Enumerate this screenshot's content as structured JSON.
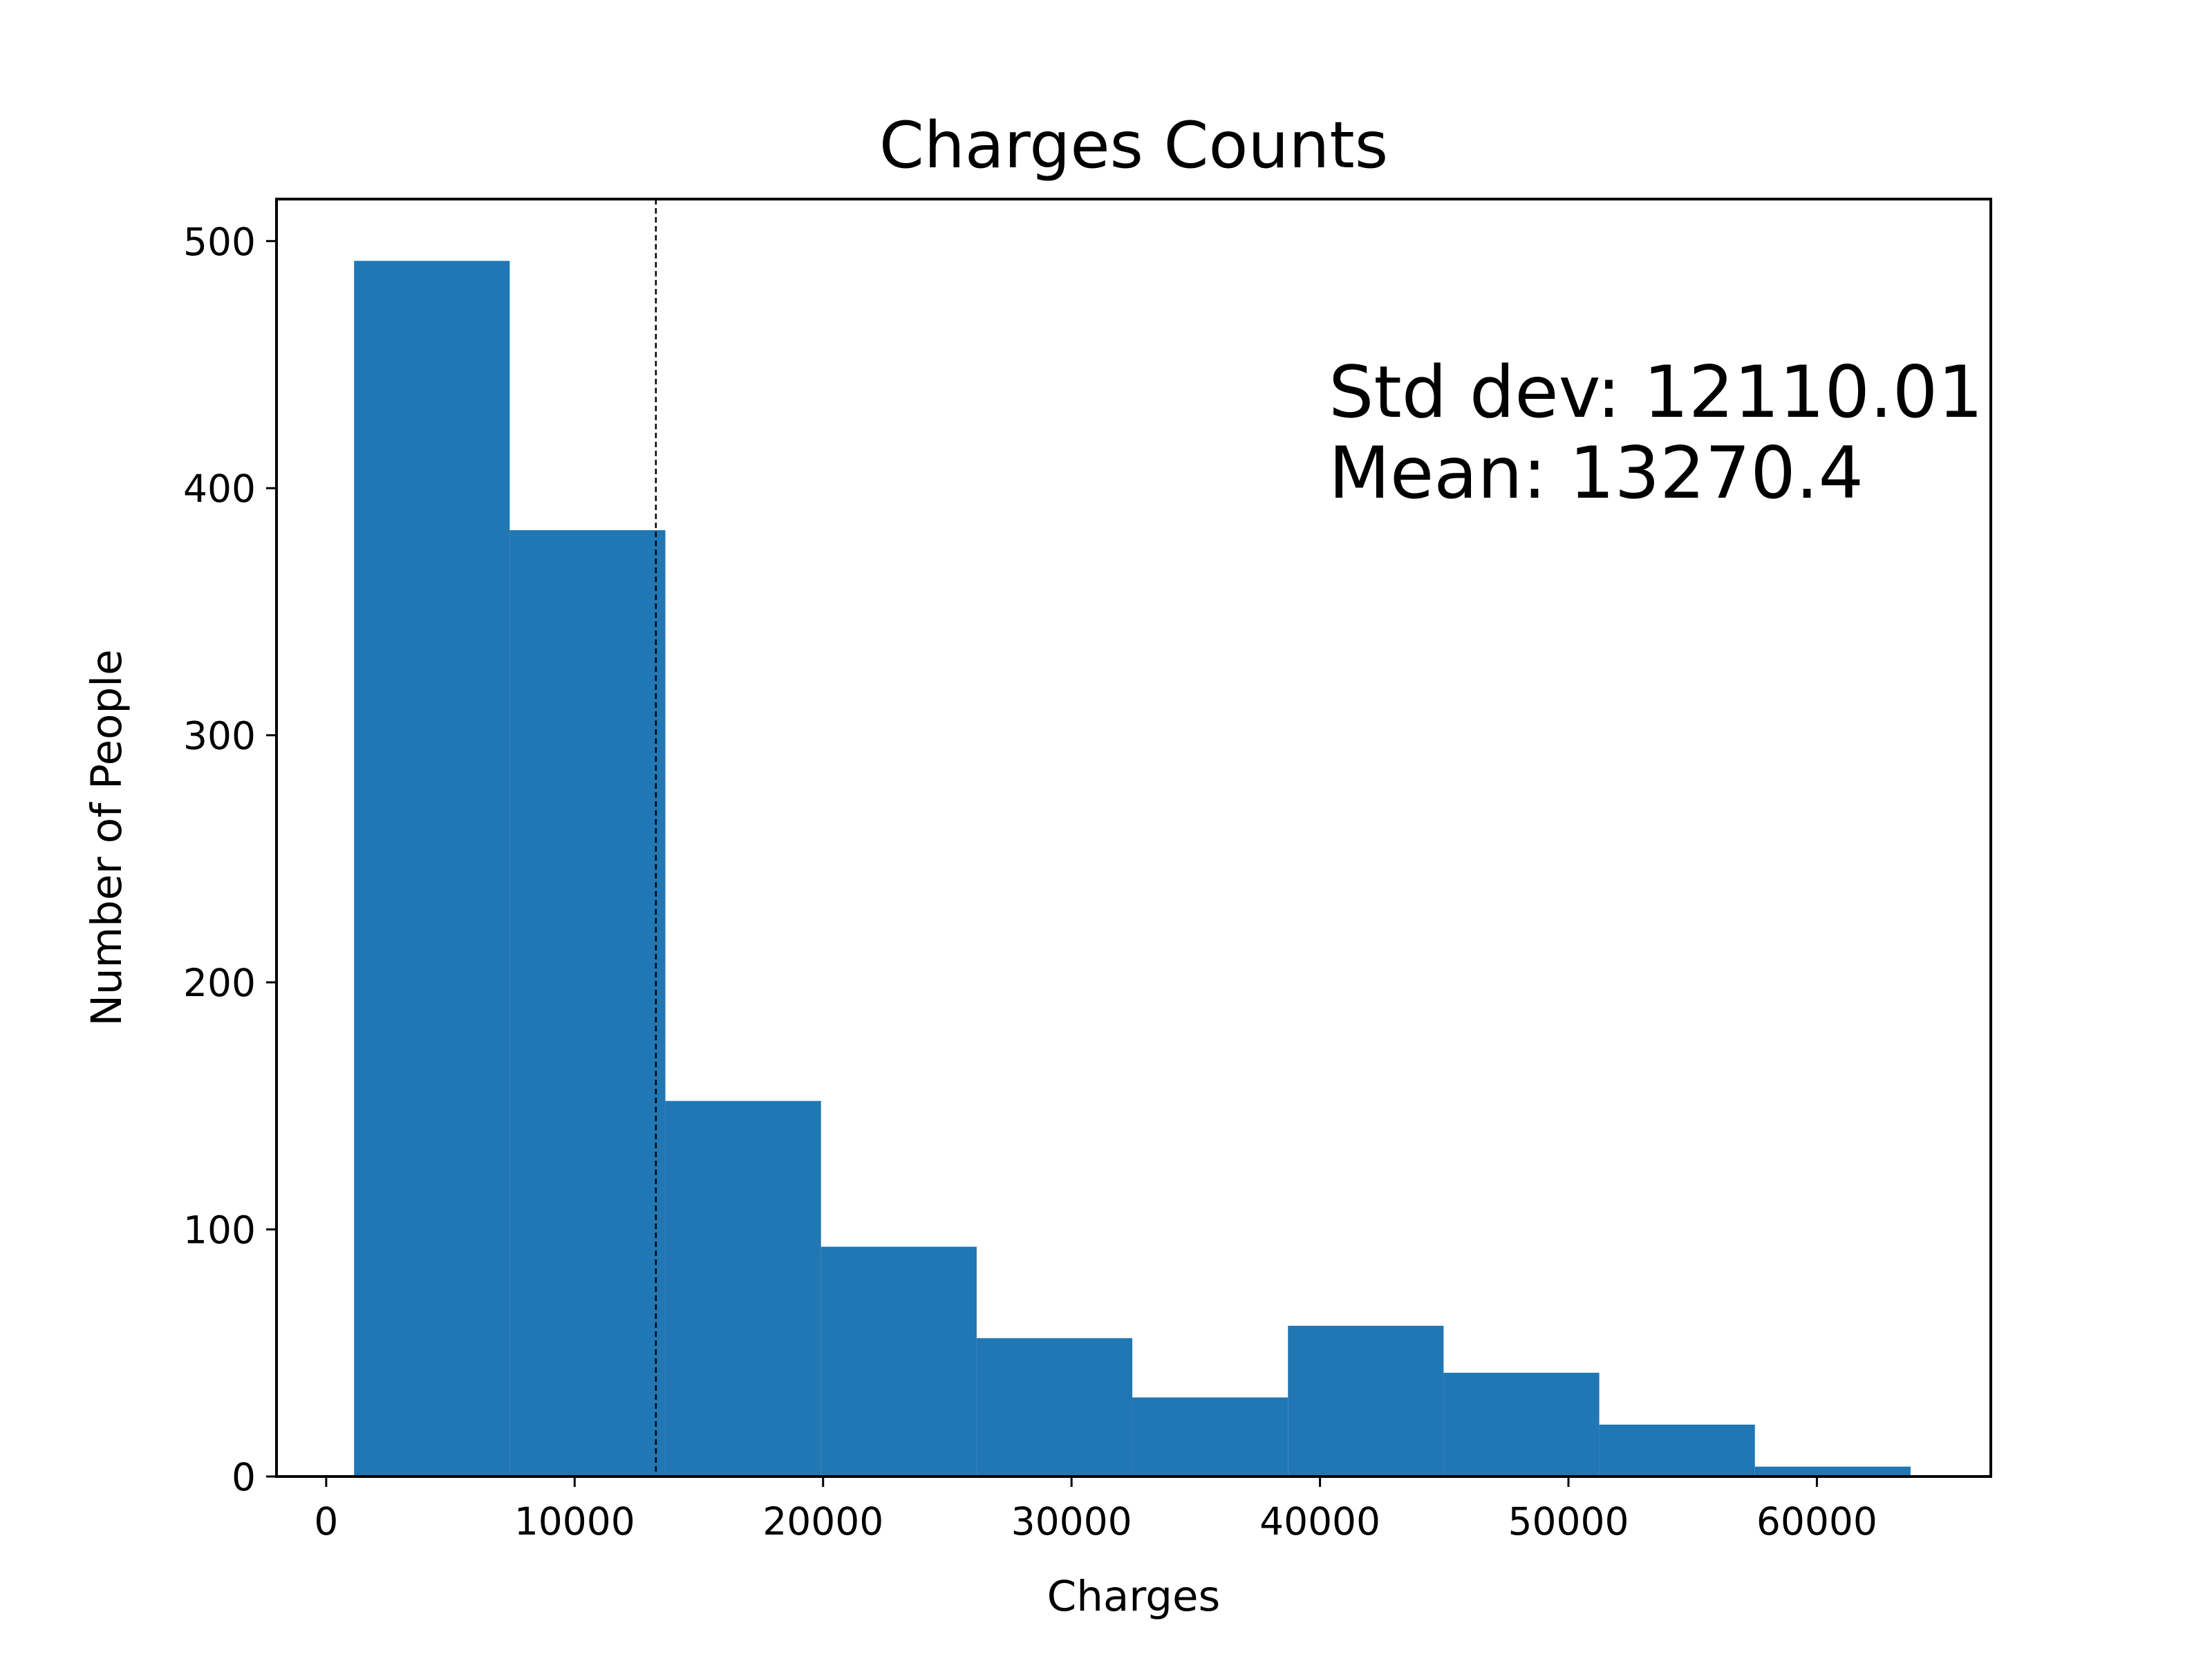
{
  "chart_data": {
    "type": "bar",
    "title": "Charges Counts",
    "xlabel": "Charges",
    "ylabel": "Number of People",
    "bin_edges": [
      1121.87,
      7386.73,
      13651.59,
      19916.45,
      26181.31,
      32446.17,
      38711.03,
      44975.89,
      51240.75,
      57505.61,
      63770.43
    ],
    "values": [
      492,
      383,
      152,
      93,
      56,
      32,
      61,
      42,
      21,
      4
    ],
    "xlim": [
      -2000,
      67000
    ],
    "ylim": [
      0,
      517
    ],
    "xticks": [
      "0",
      "10000",
      "20000",
      "30000",
      "40000",
      "50000",
      "60000"
    ],
    "xtick_values": [
      0,
      10000,
      20000,
      30000,
      40000,
      50000,
      60000
    ],
    "yticks": [
      "0",
      "100",
      "200",
      "300",
      "400",
      "500"
    ],
    "ytick_values": [
      0,
      100,
      200,
      300,
      400,
      500
    ],
    "mean": 13270.4,
    "std_dev": 12110.01,
    "annotations": [
      "Std dev: 12110.01",
      "Mean: 13270.4"
    ],
    "bar_color": "#2077b4",
    "mean_line_color": "#000000",
    "grid": false,
    "legend": "none"
  }
}
